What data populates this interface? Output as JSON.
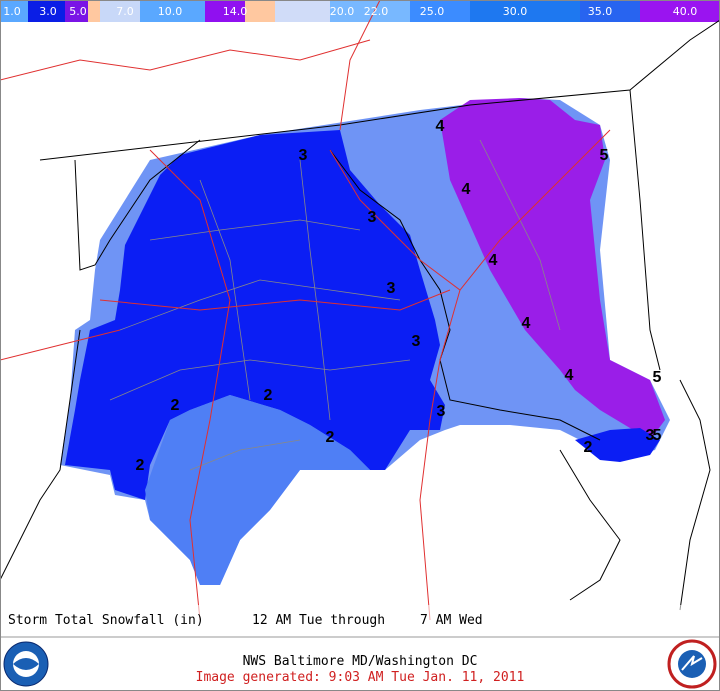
{
  "legend": {
    "labels": [
      "1.0",
      "3.0",
      "5.0",
      "7.0",
      "10.0",
      "14.0",
      "20.0",
      "22.0",
      "25.0",
      "30.0",
      "35.0",
      "40.0"
    ]
  },
  "contour_labels": [
    "3",
    "3",
    "3",
    "3",
    "3",
    "3",
    "2",
    "2",
    "2",
    "2",
    "2",
    "4",
    "4",
    "4",
    "4",
    "4",
    "5",
    "5",
    "5"
  ],
  "caption": {
    "title": "Storm Total Snowfall (in)",
    "start": "12 AM Tue through",
    "end": "7 AM Wed"
  },
  "footer": {
    "office": "NWS Baltimore MD/Washington DC",
    "generated": "Image generated: 9:03 AM Tue Jan. 11, 2011"
  }
}
